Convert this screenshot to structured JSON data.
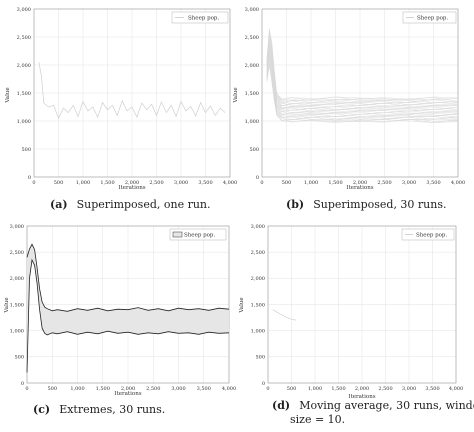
{
  "chart_data": [
    {
      "id": "a",
      "type": "line",
      "xlabel": "Iterations",
      "ylabel": "Value",
      "xlim": [
        0,
        4000
      ],
      "ylim": [
        0,
        3000
      ],
      "xticks": [
        "0",
        "500",
        "1,000",
        "1,500",
        "2,000",
        "2,500",
        "3,000",
        "3,500",
        "4,000"
      ],
      "yticks": [
        "0",
        "500",
        "1,000",
        "1,500",
        "2,000",
        "2,500",
        "3,000"
      ],
      "legend": [
        "Sheep pop."
      ],
      "legend_position": "top-right",
      "grid": true,
      "series": [
        {
          "name": "Sheep pop.",
          "x": [
            100,
            150,
            200,
            300,
            400,
            500,
            600,
            700,
            800,
            900,
            1000,
            1100,
            1200,
            1300,
            1400,
            1500,
            1600,
            1700,
            1800,
            1900,
            2000,
            2100,
            2200,
            2300,
            2400,
            2500,
            2600,
            2700,
            2800,
            2900,
            3000,
            3100,
            3200,
            3300,
            3400,
            3500,
            3600,
            3700,
            3800,
            3900
          ],
          "y": [
            2050,
            1800,
            1320,
            1250,
            1280,
            1050,
            1230,
            1150,
            1280,
            1080,
            1350,
            1180,
            1250,
            1070,
            1330,
            1200,
            1280,
            1100,
            1360,
            1180,
            1250,
            1070,
            1320,
            1200,
            1300,
            1100,
            1340,
            1150,
            1280,
            1080,
            1350,
            1180,
            1260,
            1090,
            1330,
            1150,
            1270,
            1100,
            1230,
            1150
          ]
        }
      ],
      "caption_label": "(a)",
      "caption_text": "Superimposed, one run."
    },
    {
      "id": "b",
      "type": "line",
      "xlabel": "Iterations",
      "ylabel": "Value",
      "xlim": [
        0,
        4000
      ],
      "ylim": [
        0,
        3000
      ],
      "xticks": [
        "0",
        "500",
        "1,000",
        "1,500",
        "2,000",
        "2,500",
        "3,000",
        "3,500",
        "4,000"
      ],
      "yticks": [
        "0",
        "500",
        "1,000",
        "1,500",
        "2,000",
        "2,500",
        "3,000"
      ],
      "legend": [
        "Sheep pop."
      ],
      "legend_position": "top-right",
      "grid": true,
      "runs": 30,
      "band": {
        "x": [
          100,
          150,
          200,
          250,
          300,
          400,
          600,
          1000,
          1500,
          2000,
          2500,
          3000,
          3500,
          4000
        ],
        "upper": [
          2100,
          2650,
          2400,
          1900,
          1500,
          1400,
          1420,
          1400,
          1430,
          1410,
          1420,
          1400,
          1430,
          1410
        ],
        "lower": [
          1700,
          2000,
          1700,
          1350,
          1100,
          1000,
          980,
          1000,
          970,
          990,
          980,
          1000,
          970,
          990
        ]
      },
      "caption_label": "(b)",
      "caption_text": "Superimposed, 30 runs."
    },
    {
      "id": "c",
      "type": "area",
      "xlabel": "Iterations",
      "ylabel": "Value",
      "xlim": [
        0,
        4000
      ],
      "ylim": [
        0,
        3000
      ],
      "xticks": [
        "0",
        "500",
        "1,000",
        "1,500",
        "2,000",
        "2,500",
        "3,000",
        "3,500",
        "4,000"
      ],
      "yticks": [
        "0",
        "500",
        "1,000",
        "1,500",
        "2,000",
        "2,500",
        "3,000"
      ],
      "legend": [
        "Sheep pop."
      ],
      "legend_position": "top-right",
      "grid": true,
      "series": [
        {
          "x": [
            0,
            50,
            100,
            150,
            200,
            250,
            300,
            350,
            400,
            500,
            600,
            800,
            1000,
            1200,
            1400,
            1600,
            1800,
            2000,
            2200,
            2400,
            2600,
            2800,
            3000,
            3200,
            3400,
            3600,
            3800,
            4000
          ],
          "y": [
            2400,
            2560,
            2650,
            2550,
            2200,
            1800,
            1550,
            1450,
            1420,
            1380,
            1400,
            1370,
            1420,
            1390,
            1430,
            1380,
            1410,
            1400,
            1440,
            1390,
            1420,
            1380,
            1430,
            1400,
            1420,
            1390,
            1430,
            1410
          ]
        },
        {
          "x": [
            0,
            50,
            100,
            150,
            200,
            250,
            300,
            350,
            400,
            500,
            600,
            800,
            1000,
            1200,
            1400,
            1600,
            1800,
            2000,
            2200,
            2400,
            2600,
            2800,
            3000,
            3200,
            3400,
            3600,
            3800,
            4000
          ],
          "y": [
            200,
            2000,
            2350,
            2250,
            1900,
            1400,
            1050,
            950,
            920,
            960,
            940,
            980,
            930,
            970,
            940,
            990,
            950,
            970,
            930,
            960,
            940,
            980,
            950,
            960,
            930,
            970,
            950,
            960
          ]
        }
      ],
      "caption_label": "(c)",
      "caption_text": "Extremes, 30 runs."
    },
    {
      "id": "d",
      "type": "line",
      "xlabel": "Iterations",
      "ylabel": "Value",
      "xlim": [
        0,
        4000
      ],
      "ylim": [
        0,
        3000
      ],
      "xticks": [
        "0",
        "500",
        "1,000",
        "1,500",
        "2,000",
        "2,500",
        "3,000",
        "3,500",
        "4,000"
      ],
      "yticks": [
        "0",
        "500",
        "1,000",
        "1,500",
        "2,000",
        "2,500",
        "3,000"
      ],
      "legend": [
        "Sheep pop."
      ],
      "legend_position": "top-right",
      "grid": true,
      "series": [
        {
          "name": "Sheep pop.",
          "x": [
            100,
            200,
            300,
            400,
            500,
            600
          ],
          "y": [
            1400,
            1350,
            1300,
            1250,
            1220,
            1200
          ]
        }
      ],
      "caption_label": "(d)",
      "caption_text_line1": "Moving average, 30 runs, window",
      "caption_text_line2": "size = 10."
    }
  ]
}
